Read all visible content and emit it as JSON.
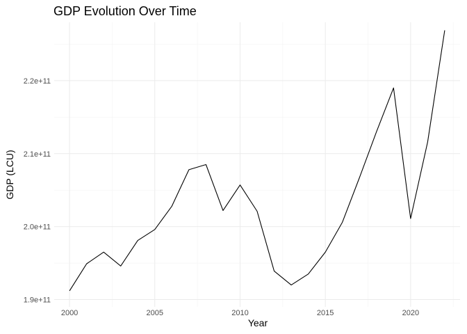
{
  "chart_data": {
    "type": "line",
    "title": "GDP Evolution Over Time",
    "xlabel": "Year",
    "ylabel": "GDP (LCU)",
    "x": [
      2000,
      2001,
      2002,
      2003,
      2004,
      2005,
      2006,
      2007,
      2008,
      2009,
      2010,
      2011,
      2012,
      2013,
      2014,
      2015,
      2016,
      2017,
      2018,
      2019,
      2020,
      2021,
      2022
    ],
    "series": [
      {
        "values": [
          191200000000,
          194900000000,
          196500000000,
          194600000000,
          198100000000,
          199600000000,
          202800000000,
          207800000000,
          208500000000,
          202200000000,
          205700000000,
          202100000000,
          193900000000,
          192000000000,
          193500000000,
          196500000000,
          200600000000,
          206700000000,
          213000000000,
          219000000000,
          201100000000,
          211600000000,
          226900000000
        ],
        "color": "#000000"
      }
    ],
    "xlim": [
      1999.1,
      2022.9
    ],
    "ylim": [
      189000000000,
      228000000000
    ],
    "x_ticks": [
      2000,
      2005,
      2010,
      2015,
      2020
    ],
    "x_tick_labels": [
      "2000",
      "2005",
      "2010",
      "2015",
      "2020"
    ],
    "y_ticks": [
      190000000000,
      200000000000,
      210000000000,
      220000000000
    ],
    "y_tick_labels": [
      "1.9e+11",
      "2.0e+11",
      "2.1e+11",
      "2.2e+11"
    ],
    "grid": true,
    "legend": "none"
  }
}
